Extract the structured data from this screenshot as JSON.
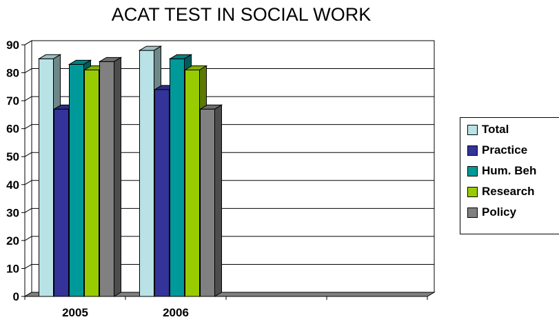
{
  "chart_data": {
    "type": "bar",
    "title": "ACAT TEST IN SOCIAL WORK",
    "xlabel": "",
    "ylabel": "",
    "categories": [
      "2005",
      "2006",
      "",
      ""
    ],
    "series": [
      {
        "name": "Total",
        "color": "#b8e2e6",
        "values": [
          85,
          88,
          null,
          null
        ]
      },
      {
        "name": "Practice",
        "color": "#333399",
        "values": [
          67,
          74,
          null,
          null
        ]
      },
      {
        "name": "Hum. Beh",
        "color": "#009999",
        "values": [
          83,
          85,
          null,
          null
        ]
      },
      {
        "name": "Research",
        "color": "#99cc00",
        "values": [
          81,
          81,
          null,
          null
        ]
      },
      {
        "name": "Policy",
        "color": "#808080",
        "values": [
          84,
          67,
          null,
          null
        ]
      }
    ],
    "ylim": [
      0,
      90
    ],
    "yticks": [
      0,
      10,
      20,
      30,
      40,
      50,
      60,
      70,
      80,
      90
    ],
    "grid": true,
    "legend": "right",
    "style": "3d"
  }
}
